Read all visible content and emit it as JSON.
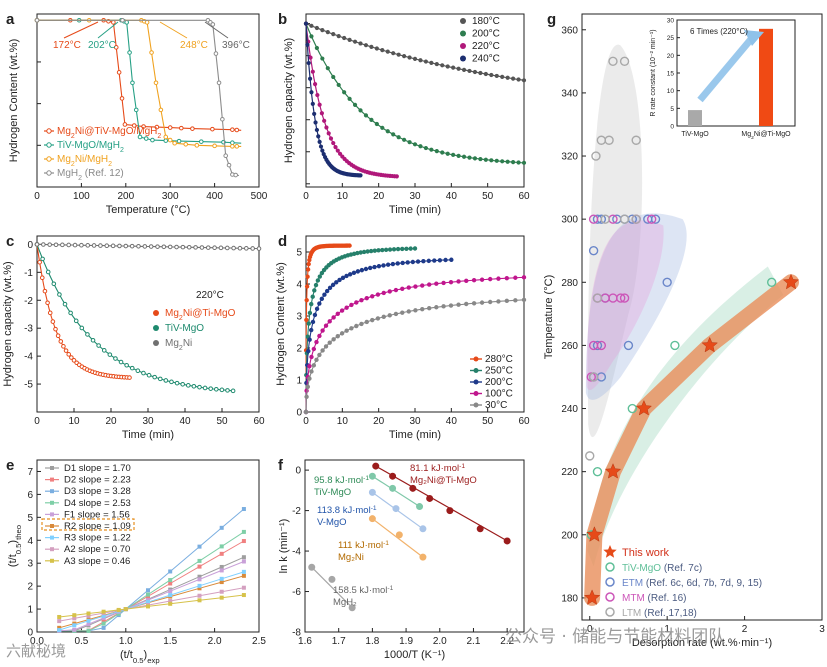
{
  "chart_data": [
    {
      "panel": "a",
      "type": "line",
      "xlabel": "Temperature (°C)",
      "ylabel": "Hydrogen Content (wt.%)",
      "xlim": [
        0,
        500
      ],
      "ylim": [
        -8,
        0.3
      ],
      "xticks": [
        "0",
        "100",
        "200",
        "300",
        "400",
        "500"
      ],
      "annotations": [
        "172°C",
        "202°C",
        "248°C",
        "396°C"
      ],
      "series": [
        {
          "name": "Mg2Ni@TiV-MgO/MgH2",
          "color": "#e64a19",
          "marker": "circle",
          "points": [
            [
              0,
              0
            ],
            [
              150,
              0
            ],
            [
              172,
              -0.1
            ],
            [
              185,
              -2.5
            ],
            [
              198,
              -5
            ],
            [
              240,
              -5.1
            ],
            [
              300,
              -5.15
            ],
            [
              350,
              -5.2
            ],
            [
              440,
              -5.25
            ],
            [
              460,
              -5.28
            ]
          ]
        },
        {
          "name": "TiV-MgO/MgH2",
          "color": "#26a085",
          "marker": "circle",
          "points": [
            [
              0,
              0
            ],
            [
              190,
              0
            ],
            [
              202,
              -0.1
            ],
            [
              215,
              -3
            ],
            [
              232,
              -5.6
            ],
            [
              260,
              -5.75
            ],
            [
              320,
              -5.8
            ],
            [
              420,
              -5.85
            ],
            [
              460,
              -5.9
            ]
          ]
        },
        {
          "name": "Mg2Ni/MgH2",
          "color": "#f0a220",
          "marker": "circle",
          "points": [
            [
              0,
              0
            ],
            [
              235,
              0
            ],
            [
              248,
              -0.1
            ],
            [
              268,
              -3
            ],
            [
              290,
              -5.6
            ],
            [
              310,
              -5.9
            ],
            [
              360,
              -6.0
            ],
            [
              440,
              -6.05
            ],
            [
              460,
              -6.05
            ]
          ]
        },
        {
          "name": "MgH2 (Ref. 12)",
          "color": "#8c8c8c",
          "marker": "circle",
          "points": [
            [
              0,
              0
            ],
            [
              385,
              0
            ],
            [
              396,
              -0.2
            ],
            [
              410,
              -3
            ],
            [
              425,
              -6.5
            ],
            [
              440,
              -7.4
            ],
            [
              455,
              -7.45
            ]
          ]
        }
      ],
      "legend": [
        {
          "main": "Mg",
          "sub": "2",
          "rest": "Ni@TiV-MgO/MgH",
          "sub2": "2",
          "extra": ""
        },
        {
          "main": "TiV-MgO/MgH",
          "sub": "2",
          "rest": "",
          "sub2": "",
          "extra": ""
        },
        {
          "main": "Mg",
          "sub": "2",
          "rest": "Ni/MgH",
          "sub2": "2",
          "extra": ""
        },
        {
          "main": "MgH",
          "sub": "2",
          "rest": "",
          "sub2": "",
          "extra": " (Ref. 12)"
        }
      ]
    },
    {
      "panel": "b",
      "type": "line",
      "xlabel": "Time (min)",
      "ylabel": "Hydrogen capacity (wt.%)",
      "xlim": [
        0,
        60
      ],
      "ylim": [
        -5.1,
        0.3
      ],
      "xticks": [
        "0",
        "10",
        "20",
        "30",
        "40",
        "50",
        "60"
      ],
      "series": [
        {
          "name": "180°C",
          "color": "#555555",
          "tau": 60,
          "amp": -2.8,
          "end": 60
        },
        {
          "name": "200°C",
          "color": "#2e7d4f",
          "tau": 16,
          "amp": -4.45,
          "end": 60
        },
        {
          "name": "220°C",
          "color": "#b0187a",
          "tau": 5,
          "amp": -4.8,
          "end": 25
        },
        {
          "name": "240°C",
          "color": "#1c2e70",
          "tau": 2.5,
          "amp": -4.75,
          "end": 15
        }
      ]
    },
    {
      "panel": "c",
      "type": "line",
      "annotation": "220°C",
      "xlabel": "Time (min)",
      "ylabel": "Hydrogen capacity (wt.%)",
      "xlim": [
        0,
        60
      ],
      "ylim": [
        -6,
        0.3
      ],
      "xticks": [
        "0",
        "10",
        "20",
        "30",
        "40",
        "50",
        "60"
      ],
      "yticks": [
        "0",
        "-1",
        "-2",
        "-3",
        "-4",
        "-5"
      ],
      "series": [
        {
          "name": "Mg2Ni@Ti-MgO",
          "color": "#e64a19",
          "tau": 5,
          "amp": -4.8,
          "end": 25
        },
        {
          "name": "TiV-MgO",
          "color": "#1e8a6e",
          "tau": 15,
          "amp": -5.4,
          "end": 53
        },
        {
          "name": "Mg2Ni",
          "color": "#707070",
          "tau": 0,
          "amp": -0.15,
          "end": 60
        }
      ],
      "legend": [
        {
          "main": "Mg",
          "sub": "2",
          "rest": "Ni@Ti-MgO"
        },
        {
          "main": "TiV-MgO",
          "sub": "",
          "rest": ""
        },
        {
          "main": "Mg",
          "sub": "2",
          "rest": "Ni"
        }
      ]
    },
    {
      "panel": "d",
      "type": "line",
      "xlabel": "Time (min)",
      "ylabel": "Hydrogen Content (wt.%)",
      "xlim": [
        0,
        60
      ],
      "ylim": [
        0,
        5.5
      ],
      "xticks": [
        "0",
        "10",
        "20",
        "30",
        "40",
        "50",
        "60"
      ],
      "yticks": [
        "0",
        "1",
        "2",
        "3",
        "4",
        "5"
      ],
      "series": [
        {
          "name": "280°C",
          "color": "#e64a19",
          "tau": 0.3,
          "amp": 5.2,
          "end": 12
        },
        {
          "name": "250°C",
          "color": "#26806b",
          "tau": 2.5,
          "amp": 5.15,
          "end": 30
        },
        {
          "name": "200°C",
          "color": "#1e3a8a",
          "tau": 5,
          "amp": 4.85,
          "end": 40
        },
        {
          "name": "100°C",
          "color": "#c0168d",
          "tau": 12,
          "amp": 4.4,
          "end": 60
        },
        {
          "name": "30°C",
          "color": "#888888",
          "tau": 18,
          "amp": 3.8,
          "end": 60
        }
      ]
    },
    {
      "panel": "e",
      "type": "line",
      "xlabel": "(t/t0.5)exp",
      "ylabel": "(t/t0.5)theo",
      "xlim": [
        0,
        2.5
      ],
      "ylim": [
        0,
        7.5
      ],
      "xticks": [
        "0.0",
        "0.5",
        "1.0",
        "1.5",
        "2.0",
        "2.5"
      ],
      "yticks": [
        "0",
        "1",
        "2",
        "3",
        "4",
        "5",
        "6",
        "7"
      ],
      "series": [
        {
          "name": "D1 slope = 1.70",
          "color": "#9e9e9e",
          "slope": 1.7
        },
        {
          "name": "D2 slope = 2.23",
          "color": "#f08080",
          "slope": 2.23
        },
        {
          "name": "D3 slope = 3.28",
          "color": "#7aaee0",
          "slope": 3.28
        },
        {
          "name": "D4 slope = 2.53",
          "color": "#7ecfa7",
          "slope": 2.53
        },
        {
          "name": "F1 slope = 1.56",
          "color": "#c9a0d8",
          "slope": 1.56
        },
        {
          "name": "R2 slope = 1.09",
          "color": "#d98a3a",
          "slope": 1.09
        },
        {
          "name": "R3 slope = 1.22",
          "color": "#80d0ff",
          "slope": 1.22
        },
        {
          "name": "A2 slope = 0.70",
          "color": "#d4a0c0",
          "slope": 0.7
        },
        {
          "name": "A3 slope = 0.46",
          "color": "#d6c24a",
          "slope": 0.46
        }
      ]
    },
    {
      "panel": "f",
      "type": "scatter",
      "xlabel": "1000/T (K⁻¹)",
      "ylabel": "ln k (min⁻¹)",
      "xlim": [
        1.6,
        2.25
      ],
      "ylim": [
        -8,
        0.5
      ],
      "xticks": [
        "1.6",
        "1.7",
        "1.8",
        "1.9",
        "2.0",
        "2.1",
        "2.2"
      ],
      "yticks": [
        "0",
        "-2",
        "-4",
        "-6",
        "-8"
      ],
      "series": [
        {
          "name": "Mg2Ni@Ti-MgO",
          "color": "#9b1c1c",
          "label1": "81.1 kJ·mol",
          "label2": "Mg2Ni@Ti-MgO",
          "points": [
            [
              1.81,
              0.2
            ],
            [
              1.86,
              -0.3
            ],
            [
              1.92,
              -0.9
            ],
            [
              1.97,
              -1.4
            ],
            [
              2.03,
              -2.0
            ],
            [
              2.12,
              -2.9
            ],
            [
              2.2,
              -3.5
            ]
          ]
        },
        {
          "name": "TiV-MgO",
          "color": "#7fc8a9",
          "label1": "95.8 kJ·mol",
          "label2": "TiV-MgO",
          "points": [
            [
              1.8,
              -0.3
            ],
            [
              1.86,
              -0.9
            ],
            [
              1.94,
              -1.8
            ]
          ]
        },
        {
          "name": "V-MgO",
          "color": "#a9c4e8",
          "label1": "113.8 kJ·mol",
          "label2": "V-MgO",
          "points": [
            [
              1.8,
              -1.1
            ],
            [
              1.87,
              -1.9
            ],
            [
              1.95,
              -2.9
            ]
          ]
        },
        {
          "name": "Mg2Ni",
          "color": "#f2b26b",
          "label1": "111 kJ·mol",
          "label2": "Mg2Ni",
          "points": [
            [
              1.8,
              -2.4
            ],
            [
              1.88,
              -3.2
            ],
            [
              1.95,
              -4.3
            ]
          ]
        },
        {
          "name": "MgH2",
          "color": "#a6a6a6",
          "label1": "158.5 kJ·mol",
          "label2": "MgH2",
          "points": [
            [
              1.62,
              -4.8
            ],
            [
              1.68,
              -5.4
            ],
            [
              1.74,
              -6.8
            ]
          ]
        }
      ]
    },
    {
      "panel": "g",
      "type": "scatter",
      "xlabel": "Desorption rate (wt.%·min⁻¹)",
      "ylabel": "Temperature (°C)",
      "xlim": [
        -0.1,
        3
      ],
      "ylim": [
        173,
        365
      ],
      "xticks": [
        "0",
        "1",
        "2",
        "3"
      ],
      "yticks": [
        "180",
        "200",
        "220",
        "240",
        "260",
        "280",
        "300",
        "320",
        "340",
        "360"
      ],
      "series": [
        {
          "name": "This work",
          "color": "#e64a19",
          "marker": "star",
          "points": [
            [
              0.03,
              180
            ],
            [
              0.06,
              200
            ],
            [
              0.3,
              220
            ],
            [
              0.7,
              240
            ],
            [
              1.55,
              260
            ],
            [
              2.6,
              280
            ]
          ]
        },
        {
          "name": "TiV-MgO",
          "ref": " (Ref. 7c)",
          "color": "#5fbf98",
          "marker": "circle",
          "points": [
            [
              0.02,
              200
            ],
            [
              0.1,
              220
            ],
            [
              0.55,
              240
            ],
            [
              1.1,
              260
            ],
            [
              2.35,
              280
            ]
          ]
        },
        {
          "name": "ETM",
          "ref": " (Ref. 6c, 6d, 7b, 7d, 9, 15)",
          "color": "#6a86c9",
          "marker": "circle",
          "points": [
            [
              0.05,
              250
            ],
            [
              0.15,
              250
            ],
            [
              0.1,
              260
            ],
            [
              0.2,
              275
            ],
            [
              0.05,
              290
            ],
            [
              0.15,
              300
            ],
            [
              0.35,
              300
            ],
            [
              0.45,
              300
            ],
            [
              0.55,
              300
            ],
            [
              0.75,
              300
            ],
            [
              0.85,
              300
            ],
            [
              0.5,
              260
            ],
            [
              0.1,
              300
            ],
            [
              1.0,
              280
            ]
          ]
        },
        {
          "name": "MTM",
          "ref": " (Ref. 16)",
          "color": "#cc55b8",
          "marker": "circle",
          "points": [
            [
              0.02,
              250
            ],
            [
              0.05,
              260
            ],
            [
              0.1,
              275
            ],
            [
              0.2,
              275
            ],
            [
              0.3,
              275
            ],
            [
              0.4,
              275
            ],
            [
              0.15,
              260
            ],
            [
              0.05,
              300
            ],
            [
              0.3,
              300
            ],
            [
              0.6,
              300
            ],
            [
              0.8,
              300
            ],
            [
              0.45,
              275
            ]
          ]
        },
        {
          "name": "LTM",
          "ref": " (Ref. 17,18)",
          "color": "#a8a8a8",
          "marker": "circle",
          "points": [
            [
              0.0,
              225
            ],
            [
              0.08,
              320
            ],
            [
              0.15,
              325
            ],
            [
              0.25,
              325
            ],
            [
              0.3,
              350
            ],
            [
              0.45,
              350
            ],
            [
              0.6,
              325
            ],
            [
              0.2,
              300
            ],
            [
              0.45,
              300
            ],
            [
              0.6,
              300
            ],
            [
              0.05,
              250
            ],
            [
              0.1,
              275
            ]
          ]
        }
      ],
      "legend": [
        {
          "name": "This work",
          "ref": ""
        },
        {
          "name": "TiV-MgO",
          "ref": " (Ref. 7c)"
        },
        {
          "name": "ETM",
          "ref": " (Ref. 6c, 6d, 7b, 7d, 9, 15)"
        },
        {
          "name": "MTM",
          "ref": " (Ref. 16)"
        },
        {
          "name": "LTM",
          "ref": " (Ref. 17,18)"
        }
      ],
      "inset": {
        "type": "bar",
        "title": "6 Times (220°C)",
        "ylabel": "R rate constant (10⁻² min⁻¹)",
        "categories": [
          "TiV-MgO",
          "Mg2Ni@Ti-MgO"
        ],
        "values": [
          4.5,
          27.5
        ],
        "ylim": [
          0,
          30
        ],
        "yticks": [
          "0",
          "5",
          "10",
          "15",
          "20",
          "25",
          "30"
        ],
        "colors": [
          "#a9a9a9",
          "#f04a14"
        ]
      }
    }
  ],
  "watermark": {
    "text1": "六献秘境",
    "text2": "公众号 · 储能与节能材料团队"
  }
}
